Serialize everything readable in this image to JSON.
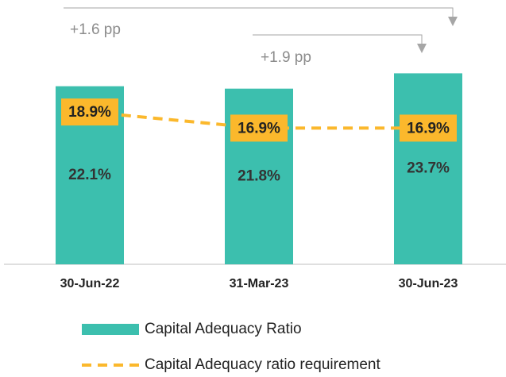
{
  "chart_data": {
    "type": "bar",
    "categories": [
      "30-Jun-22",
      "31-Mar-23",
      "30-Jun-23"
    ],
    "series": [
      {
        "name": "Capital Adequacy Ratio",
        "type": "bar",
        "color": "#3cbfae",
        "values": [
          22.1,
          21.8,
          23.7
        ],
        "value_labels": [
          "22.1%",
          "21.8%",
          "23.7%"
        ]
      },
      {
        "name": "Capital Adequacy ratio requirement",
        "type": "line",
        "color": "#fbb82c",
        "values": [
          18.9,
          16.9,
          16.9
        ],
        "value_labels": [
          "18.9%",
          "16.9%",
          "16.9%"
        ]
      }
    ],
    "ylim": [
      0,
      32.8
    ],
    "annotations": [
      "+1.6 pp",
      "+1.9 pp"
    ],
    "legend": "bottom"
  }
}
